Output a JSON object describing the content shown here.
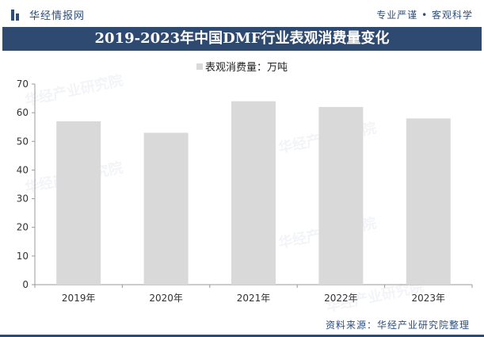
{
  "header": {
    "brand": "华经情报网",
    "slogan": "专业严谨 • 客观科学"
  },
  "chart_data": {
    "type": "bar",
    "title": "2019-2023年中国DMF行业表观消费量变化",
    "categories": [
      "2019年",
      "2020年",
      "2021年",
      "2022年",
      "2023年"
    ],
    "series": [
      {
        "name": "表观消费量：万吨",
        "values": [
          57,
          53,
          64,
          62,
          58
        ]
      }
    ],
    "ylim": [
      0,
      70
    ],
    "yticks": [
      0,
      10,
      20,
      30,
      40,
      50,
      60,
      70
    ],
    "xlabel": "",
    "ylabel": "",
    "grid": false,
    "legend_position": "top-center",
    "bar_color": "#d9d9d9",
    "title_bar_color": "#2f4a70"
  },
  "footer": {
    "source": "资料来源：华经产业研究院整理"
  },
  "watermark": {
    "text": "华经产业研究院",
    "url": "www.huaon.com"
  }
}
